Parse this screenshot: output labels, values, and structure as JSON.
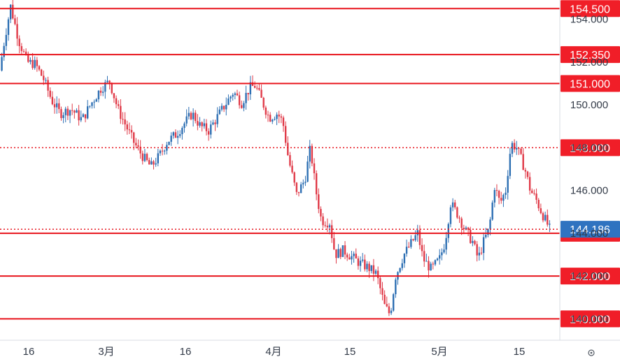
{
  "chart_data": {
    "type": "candlestick",
    "y_axis": {
      "position": "right",
      "range": [
        139.0,
        154.9
      ],
      "ticks": [
        {
          "value": 154.0,
          "label": "154.000"
        },
        {
          "value": 152.0,
          "label": "152.000"
        },
        {
          "value": 150.0,
          "label": "150.000"
        },
        {
          "value": 148.0,
          "label": "148.000"
        },
        {
          "value": 146.0,
          "label": "146.000"
        },
        {
          "value": 144.0,
          "label": "144.000"
        },
        {
          "value": 142.0,
          "label": "142.000"
        },
        {
          "value": 140.0,
          "label": "140.000"
        }
      ]
    },
    "x_axis": {
      "ticks": [
        "16",
        "3月",
        "16",
        "4月",
        "15",
        "5月",
        "15"
      ]
    },
    "horizontal_levels": [
      {
        "value": 154.5,
        "label": "154.500",
        "style": "solid"
      },
      {
        "value": 152.35,
        "label": "152.350",
        "style": "solid"
      },
      {
        "value": 151.0,
        "label": "151.000",
        "style": "solid"
      },
      {
        "value": 148.0,
        "label": "148.000",
        "style": "dotted"
      },
      {
        "value": 144.0,
        "label": "144.000",
        "style": "solid-label"
      },
      {
        "value": 142.0,
        "label": "142.000",
        "style": "solid"
      },
      {
        "value": 140.0,
        "label": "140.000",
        "style": "solid"
      }
    ],
    "current_price": {
      "value": 144.186,
      "label": "144.186",
      "style": "dotted"
    },
    "price_path": [
      [
        0,
        151.6
      ],
      [
        0.01,
        153.2
      ],
      [
        0.02,
        154.6
      ],
      [
        0.035,
        153.0
      ],
      [
        0.05,
        152.0
      ],
      [
        0.065,
        151.9
      ],
      [
        0.08,
        151.2
      ],
      [
        0.095,
        150.2
      ],
      [
        0.11,
        149.6
      ],
      [
        0.13,
        149.8
      ],
      [
        0.15,
        149.3
      ],
      [
        0.165,
        150.0
      ],
      [
        0.185,
        150.8
      ],
      [
        0.2,
        151.1
      ],
      [
        0.215,
        149.8
      ],
      [
        0.23,
        149.0
      ],
      [
        0.245,
        148.2
      ],
      [
        0.26,
        147.6
      ],
      [
        0.275,
        147.1
      ],
      [
        0.29,
        147.6
      ],
      [
        0.305,
        148.3
      ],
      [
        0.32,
        148.6
      ],
      [
        0.335,
        149.1
      ],
      [
        0.35,
        149.6
      ],
      [
        0.365,
        149.0
      ],
      [
        0.38,
        148.8
      ],
      [
        0.395,
        149.4
      ],
      [
        0.41,
        150.0
      ],
      [
        0.425,
        150.6
      ],
      [
        0.44,
        150.1
      ],
      [
        0.455,
        150.8
      ],
      [
        0.465,
        150.9
      ],
      [
        0.475,
        150.3
      ],
      [
        0.49,
        149.4
      ],
      [
        0.505,
        149.6
      ],
      [
        0.515,
        149.2
      ],
      [
        0.525,
        147.5
      ],
      [
        0.54,
        145.8
      ],
      [
        0.555,
        146.5
      ],
      [
        0.565,
        148.0
      ],
      [
        0.575,
        146.0
      ],
      [
        0.585,
        144.6
      ],
      [
        0.6,
        144.5
      ],
      [
        0.61,
        143.0
      ],
      [
        0.625,
        143.2
      ],
      [
        0.64,
        142.9
      ],
      [
        0.655,
        142.6
      ],
      [
        0.67,
        142.4
      ],
      [
        0.685,
        142.1
      ],
      [
        0.7,
        140.6
      ],
      [
        0.71,
        140.2
      ],
      [
        0.72,
        142.0
      ],
      [
        0.735,
        143.0
      ],
      [
        0.75,
        143.6
      ],
      [
        0.76,
        144.0
      ],
      [
        0.77,
        142.8
      ],
      [
        0.785,
        142.3
      ],
      [
        0.8,
        142.8
      ],
      [
        0.81,
        143.6
      ],
      [
        0.82,
        145.4
      ],
      [
        0.835,
        144.8
      ],
      [
        0.845,
        144.2
      ],
      [
        0.86,
        143.6
      ],
      [
        0.87,
        142.8
      ],
      [
        0.88,
        143.6
      ],
      [
        0.89,
        144.2
      ],
      [
        0.9,
        146.2
      ],
      [
        0.91,
        145.4
      ],
      [
        0.92,
        146.0
      ],
      [
        0.93,
        148.2
      ],
      [
        0.94,
        148.0
      ],
      [
        0.955,
        147.0
      ],
      [
        0.965,
        146.0
      ],
      [
        0.975,
        145.6
      ],
      [
        0.985,
        145.0
      ],
      [
        1.0,
        144.2
      ]
    ]
  },
  "icons": {
    "settings": "settings-icon"
  }
}
